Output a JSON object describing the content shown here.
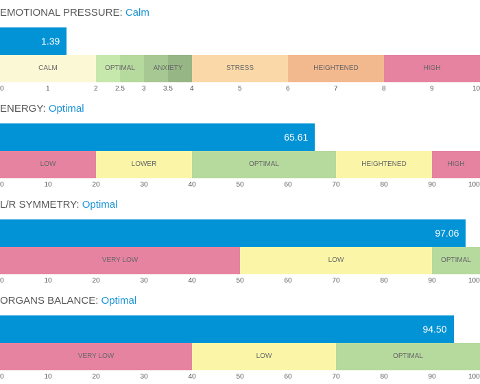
{
  "chart_data": [
    {
      "type": "bar",
      "metric": "EMOTIONAL PRESSURE:",
      "status": "Calm",
      "value": 1.39,
      "value_label": "1.39",
      "zones": [
        {
          "label": "CALM",
          "from": 0,
          "to": 2,
          "color": "#fbf8d5"
        },
        {
          "label": "OPTIMAL",
          "from": 2,
          "to": 3,
          "color": "#c7e8ac",
          "color_alt": "#b6d99e"
        },
        {
          "label": "ANXIETY",
          "from": 3,
          "to": 4,
          "color": "#a7c893",
          "color_alt": "#97b686"
        },
        {
          "label": "STRESS",
          "from": 4,
          "to": 6,
          "color": "#fbd8a8"
        },
        {
          "label": "HEIGHTENED",
          "from": 6,
          "to": 8,
          "color": "#f3b98e"
        },
        {
          "label": "HIGH",
          "from": 8,
          "to": 10,
          "color": "#e683a0"
        }
      ],
      "ticks": [
        {
          "value": 0,
          "label": "0"
        },
        {
          "value": 1,
          "label": "1"
        },
        {
          "value": 2,
          "label": "2"
        },
        {
          "value": 2.5,
          "label": "2.5"
        },
        {
          "value": 3,
          "label": "3"
        },
        {
          "value": 3.5,
          "label": "3.5"
        },
        {
          "value": 4,
          "label": "4"
        },
        {
          "value": 5,
          "label": "5"
        },
        {
          "value": 6,
          "label": "6"
        },
        {
          "value": 7,
          "label": "7"
        },
        {
          "value": 8,
          "label": "8"
        },
        {
          "value": 9,
          "label": "9"
        },
        {
          "value": 10,
          "label": "10"
        }
      ]
    },
    {
      "type": "bar",
      "metric": "ENERGY:",
      "status": "Optimal",
      "value": 65.61,
      "value_label": "65.61",
      "zones": [
        {
          "label": "LOW",
          "from": 0,
          "to": 20,
          "color": "#e683a0"
        },
        {
          "label": "LOWER",
          "from": 20,
          "to": 40,
          "color": "#fbf5a8"
        },
        {
          "label": "OPTIMAL",
          "from": 40,
          "to": 70,
          "color": "#b6d99e"
        },
        {
          "label": "HEIGHTENED",
          "from": 70,
          "to": 90,
          "color": "#fbf5a8"
        },
        {
          "label": "HIGH",
          "from": 90,
          "to": 100,
          "color": "#e683a0"
        }
      ],
      "ticks": [
        {
          "value": 0,
          "label": "0"
        },
        {
          "value": 10,
          "label": "10"
        },
        {
          "value": 20,
          "label": "20"
        },
        {
          "value": 30,
          "label": "30"
        },
        {
          "value": 40,
          "label": "40"
        },
        {
          "value": 50,
          "label": "50"
        },
        {
          "value": 60,
          "label": "60"
        },
        {
          "value": 70,
          "label": "70"
        },
        {
          "value": 80,
          "label": "80"
        },
        {
          "value": 90,
          "label": "90"
        },
        {
          "value": 100,
          "label": "100"
        }
      ]
    },
    {
      "type": "bar",
      "metric": "L/R SYMMETRY:",
      "status": "Optimal",
      "value": 97.06,
      "value_label": "97.06",
      "zones": [
        {
          "label": "VERY LOW",
          "from": 0,
          "to": 50,
          "color": "#e683a0"
        },
        {
          "label": "LOW",
          "from": 50,
          "to": 90,
          "color": "#fbf5a8"
        },
        {
          "label": "OPTIMAL",
          "from": 90,
          "to": 100,
          "color": "#b6d99e"
        }
      ],
      "ticks": [
        {
          "value": 0,
          "label": "0"
        },
        {
          "value": 10,
          "label": "10"
        },
        {
          "value": 20,
          "label": "20"
        },
        {
          "value": 30,
          "label": "30"
        },
        {
          "value": 40,
          "label": "40"
        },
        {
          "value": 50,
          "label": "50"
        },
        {
          "value": 60,
          "label": "60"
        },
        {
          "value": 70,
          "label": "70"
        },
        {
          "value": 80,
          "label": "80"
        },
        {
          "value": 90,
          "label": "90"
        },
        {
          "value": 100,
          "label": "100"
        }
      ]
    },
    {
      "type": "bar",
      "metric": "ORGANS BALANCE:",
      "status": "Optimal",
      "value": 94.5,
      "value_label": "94.50",
      "zones": [
        {
          "label": "VERY LOW",
          "from": 0,
          "to": 40,
          "color": "#e683a0"
        },
        {
          "label": "LOW",
          "from": 40,
          "to": 70,
          "color": "#fbf5a8"
        },
        {
          "label": "OPTIMAL",
          "from": 70,
          "to": 100,
          "color": "#b6d99e"
        }
      ],
      "ticks": [
        {
          "value": 0,
          "label": "0"
        },
        {
          "value": 10,
          "label": "10"
        },
        {
          "value": 20,
          "label": "20"
        },
        {
          "value": 30,
          "label": "30"
        },
        {
          "value": 40,
          "label": "40"
        },
        {
          "value": 50,
          "label": "50"
        },
        {
          "value": 60,
          "label": "60"
        },
        {
          "value": 70,
          "label": "70"
        },
        {
          "value": 80,
          "label": "80"
        },
        {
          "value": 90,
          "label": "90"
        },
        {
          "value": 100,
          "label": "100"
        }
      ]
    }
  ],
  "colors": {
    "accent": "#0293d6",
    "status_text": "#1a93d6"
  }
}
